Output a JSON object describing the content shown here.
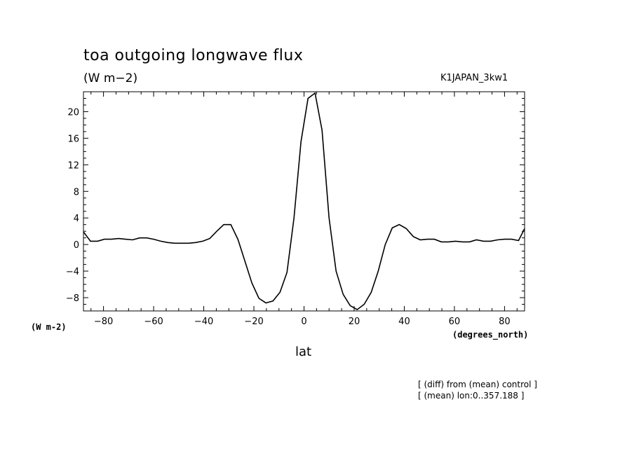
{
  "chart_data": {
    "type": "line",
    "title": "toa outgoing longwave flux",
    "units_label": "(W m−2)",
    "case_name": "K1JAPAN_3kw1",
    "ylabel": "(W m-2)",
    "xlabel": "lat",
    "xunits": "(degrees_north)",
    "notes": [
      "[ (diff) from (mean) control ]",
      "[ (mean) lon:0..357.188 ]"
    ],
    "xlim": [
      -88,
      88
    ],
    "ylim": [
      -10,
      23
    ],
    "x_ticks": [
      -80,
      -60,
      -40,
      -20,
      0,
      20,
      40,
      60,
      80
    ],
    "x_tick_labels": [
      "−80",
      "−60",
      "−40",
      "−20",
      "0",
      "20",
      "40",
      "60",
      "80"
    ],
    "y_ticks": [
      -8,
      -4,
      0,
      4,
      8,
      12,
      16,
      20
    ],
    "y_tick_labels": [
      "−8",
      "−4",
      "0",
      "4",
      "8",
      "12",
      "16",
      "20"
    ],
    "grid": false,
    "series": [
      {
        "x": [
          -88,
          -85.2,
          -82.4,
          -79.6,
          -76.8,
          -74,
          -71.2,
          -68.4,
          -65.6,
          -62.8,
          -60,
          -57.2,
          -54.4,
          -51.6,
          -48.8,
          -46,
          -43.2,
          -40.4,
          -37.6,
          -34.8,
          -32,
          -29.2,
          -26.4,
          -23.6,
          -20.8,
          -18,
          -15.2,
          -12.4,
          -9.6,
          -6.8,
          -4,
          -1.2,
          1.6,
          4.4,
          7.2,
          10,
          12.8,
          15.6,
          18.4,
          21.2,
          24,
          26.8,
          29.6,
          32.4,
          35.2,
          38,
          40.8,
          43.6,
          46.4,
          49.2,
          52,
          54.8,
          57.6,
          60.4,
          63.2,
          66,
          68.8,
          71.6,
          74.4,
          77.2,
          80,
          82.8,
          85.6,
          88
        ],
        "values": [
          1.9,
          0.5,
          0.5,
          0.8,
          0.8,
          0.9,
          0.8,
          0.7,
          1.0,
          1.0,
          0.8,
          0.5,
          0.3,
          0.2,
          0.2,
          0.2,
          0.3,
          0.5,
          0.9,
          2.0,
          3.0,
          3.0,
          0.8,
          -2.5,
          -5.8,
          -8.1,
          -8.8,
          -8.5,
          -7.2,
          -4.2,
          4.0,
          15.5,
          22.0,
          22.8,
          17.2,
          4.0,
          -4.0,
          -7.5,
          -9.2,
          -9.8,
          -9.0,
          -7.2,
          -4.0,
          0.0,
          2.5,
          3.0,
          2.4,
          1.2,
          0.7,
          0.8,
          0.8,
          0.4,
          0.4,
          0.5,
          0.4,
          0.4,
          0.7,
          0.5,
          0.5,
          0.7,
          0.8,
          0.8,
          0.6,
          2.4
        ]
      }
    ]
  }
}
